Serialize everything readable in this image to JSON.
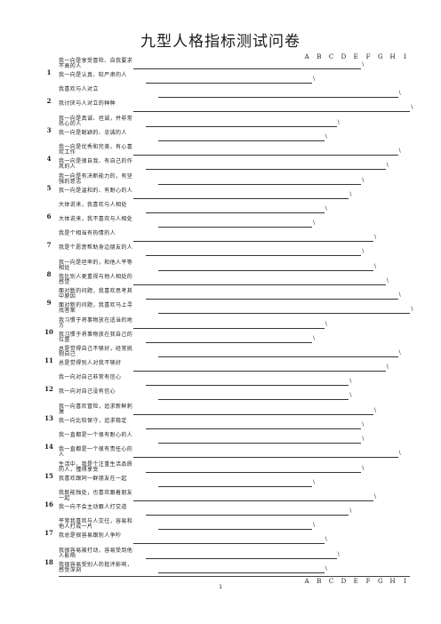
{
  "title": "九型人格指标测试问卷",
  "columns": [
    "A",
    "B",
    "C",
    "D",
    "E",
    "F",
    "G",
    "H",
    "I"
  ],
  "page_number": "1",
  "groups": [
    {
      "number": "1",
      "items": [
        {
          "text": "我一向是享受冒险、自我要求不高的人",
          "col": "E"
        },
        {
          "text": "我一向是认真、较严肃的人",
          "col": "A"
        }
      ]
    },
    {
      "number": "2",
      "items": [
        {
          "text": "我喜欢与人对立",
          "col": "H"
        },
        {
          "text": "我讨厌与人对立的种种",
          "col": "I"
        }
      ]
    },
    {
      "number": "3",
      "items": [
        {
          "text": "我一向是真诚、坦诚，并非常热心的人",
          "col": "C"
        },
        {
          "text": "我一向是聪颖的、忠诚的人",
          "col": "B"
        }
      ]
    },
    {
      "number": "4",
      "items": [
        {
          "text": "我一向是优秀和完美，有心喜欢工作",
          "col": "H"
        },
        {
          "text": "我一向是很自我、有自己的作风的人",
          "col": "G"
        }
      ]
    },
    {
      "number": "5",
      "items": [
        {
          "text": "我一向是有决断能力的，有坚强的意志",
          "col": "E"
        },
        {
          "text": "我一向是温和的、有耐心的人",
          "col": "D"
        }
      ]
    },
    {
      "number": "6",
      "items": [
        {
          "text": "大体说来，我喜欢与人相处",
          "col": "B"
        },
        {
          "text": "大体说来，我不喜欢与人相处",
          "col": "A"
        }
      ]
    },
    {
      "number": "7",
      "items": [
        {
          "text": "我是个相当有热情的人",
          "col": "F"
        },
        {
          "text": "我是个愿意帮助身边朋友的人",
          "col": "E"
        }
      ]
    },
    {
      "number": "8",
      "items": [
        {
          "text": "我一向是坦率的，和他人平等相处",
          "col": "F"
        },
        {
          "text": "我比别人更重视与他人相处的感觉",
          "col": "G"
        }
      ]
    },
    {
      "number": "9",
      "items": [
        {
          "text": "面对新的问题，我喜欢思考其中原因",
          "col": "H"
        },
        {
          "text": "面对新的问题，我喜欢马上寻找答案",
          "col": "I"
        }
      ]
    },
    {
      "number": "10",
      "items": [
        {
          "text": "我习惯于将事物放在适当的地方",
          "col": "B"
        },
        {
          "text": "我习惯于将事物放在我自己的位置",
          "col": "A"
        }
      ]
    },
    {
      "number": "11",
      "items": [
        {
          "text": "总是觉得自己不够好，经常挑剔自己",
          "col": "H"
        },
        {
          "text": "总是觉得别人对我不够好",
          "col": "G"
        }
      ]
    },
    {
      "number": "12",
      "items": [
        {
          "text": "我一向对自己非常有信心",
          "col": "D"
        },
        {
          "text": "我一向对自己没有信心",
          "col": "D"
        }
      ]
    },
    {
      "number": "13",
      "items": [
        {
          "text": "我一向喜欢冒险，追求新鲜刺激",
          "col": "F"
        },
        {
          "text": "我一向比较保守，追求稳定",
          "col": "E"
        }
      ]
    },
    {
      "number": "14",
      "items": [
        {
          "text": "我一直都是一个很有耐心的人",
          "col": "E"
        },
        {
          "text": "我一直都是一个很有责任心的人",
          "col": "H"
        }
      ]
    },
    {
      "number": "15",
      "items": [
        {
          "text": "生活中，我是个注重生活品质的人，懂得享受",
          "col": "E"
        },
        {
          "text": "我喜欢跟同一群朋友在一起",
          "col": "A"
        }
      ]
    },
    {
      "number": "16",
      "items": [
        {
          "text": "我既能独处，也喜欢跟着朋友一起",
          "col": "F"
        },
        {
          "text": "我一向不会主动跟人打交道",
          "col": "D"
        }
      ]
    },
    {
      "number": "17",
      "items": [
        {
          "text": "平常我喜欢与人交往，容易和他人打成一片",
          "col": "A"
        },
        {
          "text": "我总是很容易跟别人争吵",
          "col": "B"
        }
      ]
    },
    {
      "number": "18",
      "items": [
        {
          "text": "我很容易被打动，容易受到他人影响",
          "col": "C"
        },
        {
          "text": "我很容易受别人的批评影响，感受深刻",
          "col": "B"
        }
      ]
    }
  ],
  "tick_mark": "\\"
}
